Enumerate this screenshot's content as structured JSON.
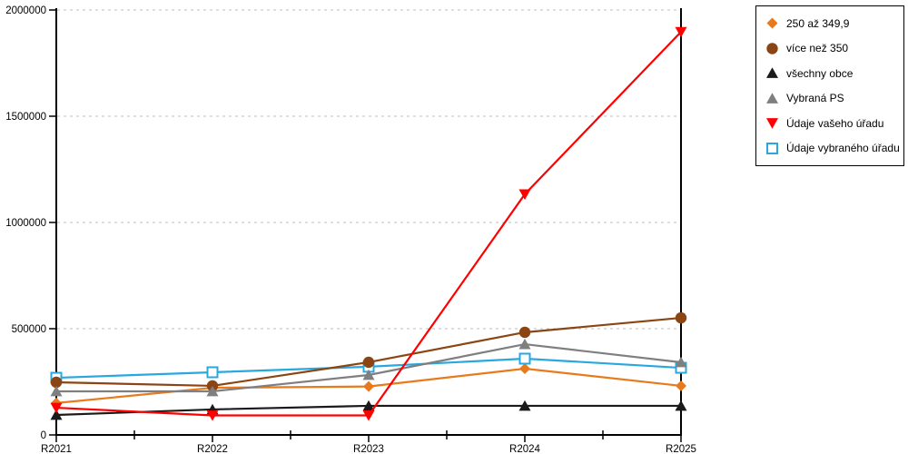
{
  "chart_data": {
    "type": "line",
    "title": "",
    "xlabel": "",
    "ylabel": "",
    "x_categories": [
      "R2021",
      "R2022",
      "R2023",
      "R2024",
      "R2025"
    ],
    "y_tick_labels": [
      "0",
      "500000",
      "1000000",
      "1500000",
      "2000000"
    ],
    "y_ticks": [
      0,
      500000,
      1000000,
      1500000,
      2000000
    ],
    "ylim": [
      0,
      2000000
    ],
    "grid": "horizontal-dashed",
    "legend_position": "top-right",
    "series": [
      {
        "name": "250 až 349,9",
        "color": "#E87A1C",
        "marker": "diamond",
        "values": [
          150000,
          222000,
          228000,
          312000,
          231000
        ]
      },
      {
        "name": "více než 350",
        "color": "#8B4513",
        "marker": "circle",
        "values": [
          248000,
          231000,
          342000,
          483000,
          551000
        ]
      },
      {
        "name": "všechny obce",
        "color": "#1A1A1A",
        "marker": "triangle-up",
        "values": [
          94000,
          120000,
          137000,
          137000,
          137000
        ]
      },
      {
        "name": "Vybraná PS",
        "color": "#7F7F7F",
        "marker": "triangle-up",
        "values": [
          205000,
          205000,
          282000,
          427000,
          342000
        ]
      },
      {
        "name": "Údaje vašeho úřadu",
        "color": "#FF0000",
        "marker": "triangle-down",
        "values": [
          128000,
          92000,
          92000,
          1133000,
          1897000
        ]
      },
      {
        "name": "Údaje vybraného úřadu",
        "color": "#29A8DF",
        "marker": "square-open",
        "values": [
          269000,
          295000,
          321000,
          359000,
          316000
        ]
      }
    ],
    "draw_order": [
      0,
      5,
      2,
      1,
      3,
      4
    ],
    "colors": {
      "grid": "#BDBDBD",
      "axis": "#000000",
      "background": "#FFFFFF"
    }
  }
}
